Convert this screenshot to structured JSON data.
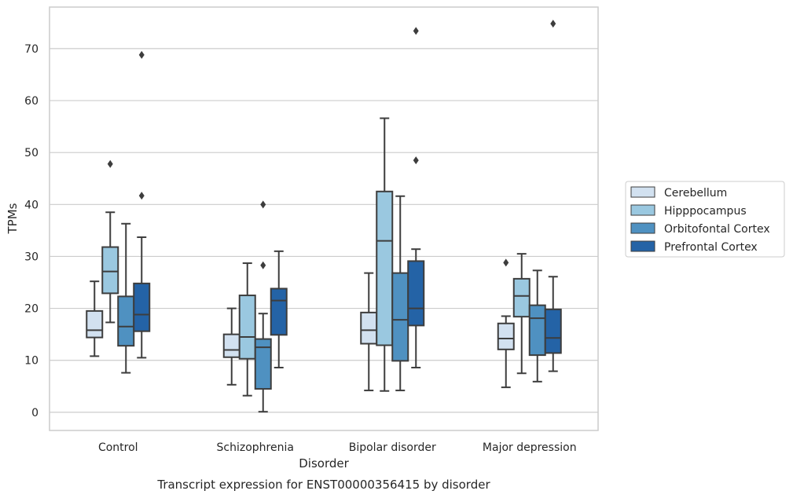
{
  "chart_data": {
    "type": "box",
    "title": "",
    "caption": "Transcript expression for ENST00000356415 by disorder",
    "xlabel": "Disorder",
    "ylabel": "TPMs",
    "ylim": [
      -3.5,
      78
    ],
    "yticks": [
      0,
      10,
      20,
      30,
      40,
      50,
      60,
      70
    ],
    "grid": "horizontal",
    "legend_position": "right",
    "categories": [
      "Control",
      "Schizophrenia",
      "Bipolar disorder",
      "Major depression"
    ],
    "series": [
      {
        "name": "Cerebellum",
        "color": "#d2e1f0",
        "boxes": [
          {
            "whisker_low": 10.8,
            "q1": 14.4,
            "median": 15.8,
            "q3": 19.5,
            "whisker_high": 25.2,
            "outliers": []
          },
          {
            "whisker_low": 5.3,
            "q1": 10.6,
            "median": 12.0,
            "q3": 15.0,
            "whisker_high": 20.0,
            "outliers": []
          },
          {
            "whisker_low": 4.2,
            "q1": 13.2,
            "median": 15.8,
            "q3": 19.2,
            "whisker_high": 26.8,
            "outliers": []
          },
          {
            "whisker_low": 4.8,
            "q1": 12.1,
            "median": 14.2,
            "q3": 17.1,
            "whisker_high": 18.5,
            "outliers": [
              28.8
            ]
          }
        ]
      },
      {
        "name": "Hipppocampus",
        "color": "#9ac8e0",
        "boxes": [
          {
            "whisker_low": 17.3,
            "q1": 22.9,
            "median": 27.1,
            "q3": 31.8,
            "whisker_high": 38.5,
            "outliers": [
              47.8
            ]
          },
          {
            "whisker_low": 3.2,
            "q1": 10.3,
            "median": 14.5,
            "q3": 22.5,
            "whisker_high": 28.7,
            "outliers": []
          },
          {
            "whisker_low": 4.1,
            "q1": 12.9,
            "median": 33.0,
            "q3": 42.5,
            "whisker_high": 56.6,
            "outliers": []
          },
          {
            "whisker_low": 7.5,
            "q1": 18.4,
            "median": 22.4,
            "q3": 25.7,
            "whisker_high": 30.5,
            "outliers": []
          }
        ]
      },
      {
        "name": "Orbitofontal Cortex",
        "color": "#4f91c1",
        "boxes": [
          {
            "whisker_low": 7.6,
            "q1": 12.8,
            "median": 16.5,
            "q3": 22.3,
            "whisker_high": 36.3,
            "outliers": []
          },
          {
            "whisker_low": 0.1,
            "q1": 4.5,
            "median": 12.5,
            "q3": 14.1,
            "whisker_high": 19.0,
            "outliers": [
              28.3,
              40.0
            ]
          },
          {
            "whisker_low": 4.2,
            "q1": 9.9,
            "median": 17.8,
            "q3": 26.8,
            "whisker_high": 41.6,
            "outliers": []
          },
          {
            "whisker_low": 5.9,
            "q1": 11.0,
            "median": 18.1,
            "q3": 20.6,
            "whisker_high": 27.3,
            "outliers": []
          }
        ]
      },
      {
        "name": "Prefrontal Cortex",
        "color": "#2463a6",
        "boxes": [
          {
            "whisker_low": 10.5,
            "q1": 15.6,
            "median": 18.8,
            "q3": 24.8,
            "whisker_high": 33.7,
            "outliers": [
              41.7,
              68.8
            ]
          },
          {
            "whisker_low": 8.6,
            "q1": 14.9,
            "median": 21.5,
            "q3": 23.8,
            "whisker_high": 31.0,
            "outliers": []
          },
          {
            "whisker_low": 8.6,
            "q1": 16.7,
            "median": 20.0,
            "q3": 29.1,
            "whisker_high": 31.4,
            "outliers": [
              48.5,
              73.4
            ]
          },
          {
            "whisker_low": 7.9,
            "q1": 11.4,
            "median": 14.3,
            "q3": 19.8,
            "whisker_high": 26.1,
            "outliers": [
              74.8
            ]
          }
        ]
      }
    ]
  }
}
